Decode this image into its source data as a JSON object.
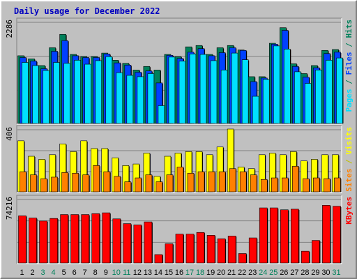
{
  "chart_data": {
    "type": "bar",
    "title": "Daily usage for December 2022",
    "days": [
      "1",
      "2",
      "3",
      "4",
      "5",
      "6",
      "7",
      "8",
      "9",
      "10",
      "11",
      "12",
      "13",
      "14",
      "15",
      "16",
      "17",
      "18",
      "19",
      "20",
      "21",
      "22",
      "23",
      "24",
      "25",
      "26",
      "27",
      "28",
      "29",
      "30",
      "31"
    ],
    "weekend_days": [
      "3",
      "4",
      "10",
      "11",
      "17",
      "18",
      "24",
      "25",
      "31"
    ],
    "colors": {
      "title": "#0000c0",
      "day_label": "#000000",
      "weekend_label": "#00805a",
      "hits": "#00805a",
      "files": "#0040ff",
      "pages": "#00e0ff",
      "visits": "#ffff00",
      "sites": "#ff8000",
      "kbytes": "#ff0000",
      "kbytes_label": "#ff0000",
      "background": "#c0c0c0",
      "grid": "#808080"
    },
    "panels": [
      {
        "ymax_label": "2286",
        "ymax": 2286,
        "right_labels": [
          {
            "text": "Pages",
            "color": "#00e0ff"
          },
          {
            "text": " / ",
            "color": "#00805a"
          },
          {
            "text": "Files",
            "color": "#0040ff"
          },
          {
            "text": " / ",
            "color": "#00805a"
          },
          {
            "text": "Hits",
            "color": "#00805a"
          }
        ],
        "series": [
          {
            "name": "Hits",
            "key": "hits",
            "values": [
              1520,
              1450,
              1300,
              1700,
              2000,
              1550,
              1500,
              1500,
              1580,
              1420,
              1350,
              1200,
              1280,
              1200,
              1550,
              1500,
              1720,
              1750,
              1550,
              1700,
              1750,
              1650,
              1050,
              1050,
              1800,
              2150,
              1340,
              1120,
              1300,
              1640,
              1660
            ]
          },
          {
            "name": "Files",
            "key": "files",
            "values": [
              1480,
              1400,
              1230,
              1620,
              1860,
              1520,
              1480,
              1480,
              1560,
              1360,
              1310,
              1150,
              1180,
              910,
              1530,
              1460,
              1600,
              1680,
              1520,
              1590,
              1700,
              1640,
              940,
              1020,
              1780,
              2090,
              1280,
              1040,
              1250,
              1570,
              1600
            ]
          },
          {
            "name": "Pages",
            "key": "pages",
            "values": [
              1370,
              1300,
              1190,
              1370,
              1350,
              1420,
              1330,
              1410,
              1500,
              1140,
              1080,
              1050,
              1120,
              400,
              1490,
              1400,
              1560,
              1550,
              1410,
              1200,
              1580,
              1430,
              610,
              990,
              1740,
              1670,
              1160,
              900,
              1200,
              1420,
              1470
            ]
          }
        ]
      },
      {
        "ymax_label": "406",
        "ymax": 406,
        "right_labels": [
          {
            "text": "Sites",
            "color": "#ff8000"
          },
          {
            "text": " / ",
            "color": "#c0c000"
          },
          {
            "text": "Visits",
            "color": "#ffff00"
          }
        ],
        "series": [
          {
            "name": "Visits",
            "key": "visits",
            "values": [
              330,
              230,
              210,
              240,
              310,
              260,
              330,
              280,
              280,
              220,
              170,
              180,
              250,
              100,
              230,
              250,
              260,
              260,
              240,
              290,
              406,
              160,
              150,
              240,
              250,
              240,
              260,
              200,
              210,
              240,
              240
            ]
          },
          {
            "name": "Sites",
            "key": "sites",
            "values": [
              130,
              110,
              85,
              95,
              125,
              120,
              110,
              170,
              130,
              100,
              65,
              90,
              110,
              65,
              110,
              160,
              120,
              130,
              130,
              130,
              150,
              130,
              110,
              80,
              90,
              90,
              165,
              85,
              90,
              85,
              90
            ]
          }
        ]
      },
      {
        "ymax_label": "74216",
        "ymax": 74216,
        "right_labels": [
          {
            "text": "KBytes",
            "color": "#ff0000"
          }
        ],
        "series": [
          {
            "name": "KBytes",
            "key": "kbytes",
            "values": [
              54500,
              52000,
              48500,
              51500,
              56000,
              56000,
              56000,
              57000,
              58000,
              51000,
              45500,
              44000,
              47500,
              9700,
              22200,
              33400,
              33400,
              35300,
              32000,
              28000,
              31200,
              10900,
              29000,
              63700,
              63700,
              61500,
              62200,
              13600,
              26100,
              66700,
              65600
            ]
          }
        ]
      }
    ]
  }
}
